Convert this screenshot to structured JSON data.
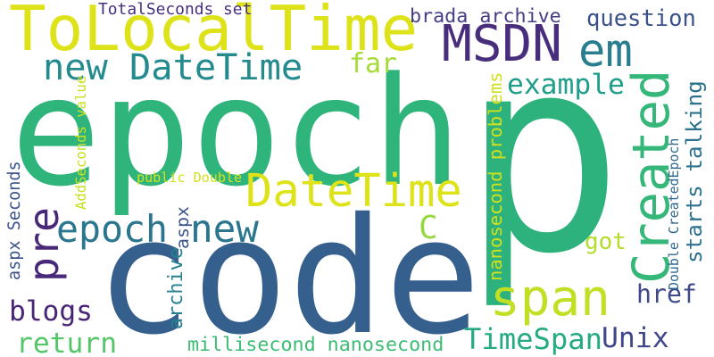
{
  "words": [
    {
      "text": "p",
      "color": "#2db27d"
    },
    {
      "text": "epoch",
      "color": "#2fb47c"
    },
    {
      "text": "code",
      "color": "#355f8d"
    },
    {
      "text": "ToLocalTime",
      "color": "#dde318"
    },
    {
      "text": "MSDN",
      "color": "#472d7b"
    },
    {
      "text": "em",
      "color": "#287d8e"
    },
    {
      "text": "Created",
      "color": "#35b779"
    },
    {
      "text": "DateTime",
      "color": "#dde318"
    },
    {
      "text": "span",
      "color": "#c2df23"
    },
    {
      "text": "pre",
      "color": "#482878"
    },
    {
      "text": "new DateTime",
      "color": "#238a8d"
    },
    {
      "text": "epoch",
      "color": "#2a768e"
    },
    {
      "text": "new",
      "color": "#2a768e"
    },
    {
      "text": "question",
      "color": "#3b528b"
    },
    {
      "text": "example",
      "color": "#1f9e89"
    },
    {
      "text": "far",
      "color": "#a5db36"
    },
    {
      "text": "starts talking",
      "color": "#2c728e"
    },
    {
      "text": "brada archive",
      "color": "#433e85"
    },
    {
      "text": "TotalSeconds set",
      "color": "#472f7d"
    },
    {
      "text": "C",
      "color": "#95d840"
    },
    {
      "text": "got",
      "color": "#b2dd2d"
    },
    {
      "text": "href",
      "color": "#3e4989"
    },
    {
      "text": "TimeSpan",
      "color": "#25ab82"
    },
    {
      "text": "Unix",
      "color": "#3f4788"
    },
    {
      "text": "blogs",
      "color": "#482475"
    },
    {
      "text": "return",
      "color": "#54c568"
    },
    {
      "text": "millisecond nanosecond",
      "color": "#3dbc74"
    },
    {
      "text": "archive",
      "color": "#26818e"
    },
    {
      "text": "aspx",
      "color": "#3a548c"
    },
    {
      "text": "aspx Seconds",
      "color": "#3b528b"
    },
    {
      "text": "nanosecond problems",
      "color": "#d0e11c"
    },
    {
      "text": "Double CreatedEpoch",
      "color": "#31688e"
    },
    {
      "text": "public Double",
      "color": "#d2e21b"
    },
    {
      "text": "AddSeconds value",
      "color": "#c8e020"
    }
  ]
}
